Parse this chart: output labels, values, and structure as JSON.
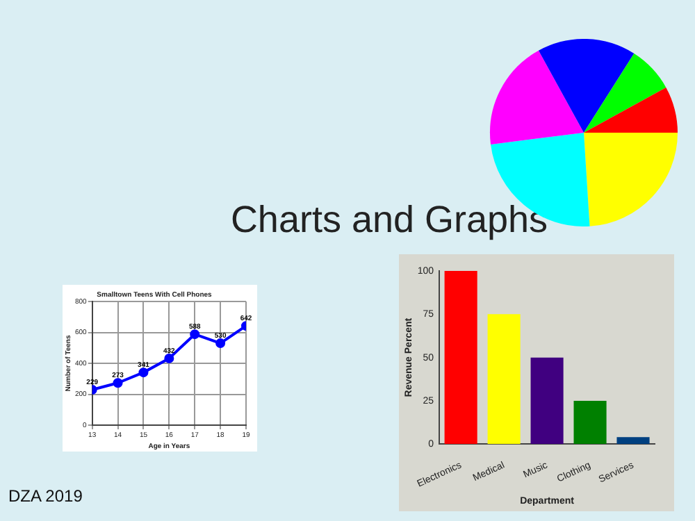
{
  "chart_data": [
    {
      "type": "other",
      "title": "Charts and Graphs",
      "annotations": [
        "DZA 2019"
      ]
    },
    {
      "type": "pie",
      "categories": [
        null,
        null,
        null,
        null,
        null,
        null
      ],
      "values": [
        24,
        24,
        19,
        17,
        8,
        8
      ],
      "colors": [
        "#ffff00",
        "#00ffff",
        "#ff00ff",
        "#0000ff",
        "#00ff00",
        "#ff0000"
      ],
      "legend": false
    },
    {
      "type": "line",
      "title": "Smalltown Teens With Cell Phones",
      "xlabel": "Age in Years",
      "ylabel": "Number of Teens",
      "x": [
        13,
        14,
        15,
        16,
        17,
        18,
        19
      ],
      "series": [
        {
          "color": "#0000ff",
          "values": [
            229,
            273,
            341,
            432,
            588,
            530,
            642
          ]
        }
      ],
      "xlim": [
        13,
        19
      ],
      "xticks": [
        13,
        14,
        15,
        16,
        17,
        18,
        19
      ],
      "ylim": [
        0,
        800
      ],
      "yticks": [
        0,
        200,
        400,
        600,
        800
      ],
      "grid": true,
      "marker": "circle",
      "data_labels": true,
      "legend": false
    },
    {
      "type": "bar",
      "xlabel": "Department",
      "ylabel": "Revenue Percent",
      "categories": [
        "Electronics",
        "Medical",
        "Music",
        "Clothing",
        "Services"
      ],
      "values": [
        100,
        75,
        50,
        25,
        4
      ],
      "colors": [
        "#ff0000",
        "#ffff00",
        "#400080",
        "#008000",
        "#004080"
      ],
      "ylim": [
        0,
        100
      ],
      "yticks": [
        0,
        25,
        50,
        75,
        100
      ],
      "grid": false,
      "legend": false
    }
  ]
}
